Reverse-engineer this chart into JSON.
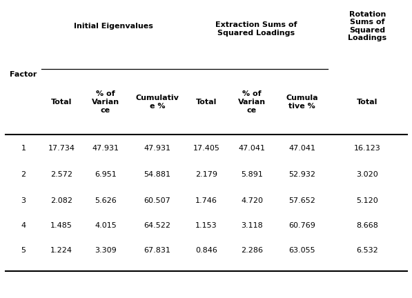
{
  "header_group1": "Initial Eigenvalues",
  "header_group2": "Extraction Sums of\nSquared Loadings",
  "header_group3": "Rotation\nSums of\nSquared\nLoadings",
  "col0_label": "Factor",
  "sub_headers": [
    "Total",
    "% of\nVarian\nce",
    "Cumulativ\ne %",
    "Total",
    "% of\nVarian\nce",
    "Cumula\ntive %",
    "Total"
  ],
  "rows": [
    [
      "1",
      "17.734",
      "47.931",
      "47.931",
      "17.405",
      "47.041",
      "47.041",
      "16.123"
    ],
    [
      "2",
      "2.572",
      "6.951",
      "54.881",
      "2.179",
      "5.891",
      "52.932",
      "3.020"
    ],
    [
      "3",
      "2.082",
      "5.626",
      "60.507",
      "1.746",
      "4.720",
      "57.652",
      "5.120"
    ],
    [
      "4",
      "1.485",
      "4.015",
      "64.522",
      "1.153",
      "3.118",
      "60.769",
      "8.668"
    ],
    [
      "5",
      "1.224",
      "3.309",
      "67.831",
      "0.846",
      "2.286",
      "63.055",
      "6.532"
    ]
  ],
  "background_color": "#ffffff",
  "text_color": "#000000",
  "line_color": "#000000",
  "font_size": 8.0,
  "font_size_bold": 8.0
}
